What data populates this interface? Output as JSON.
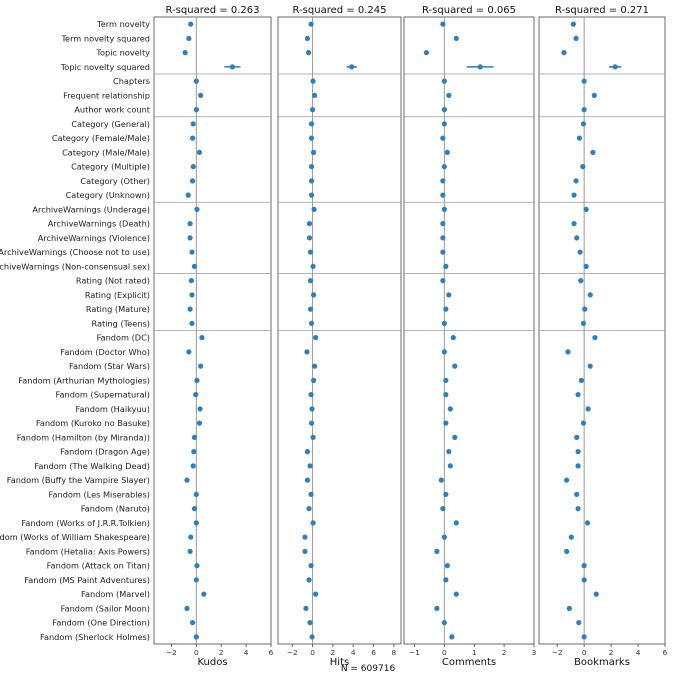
{
  "chart_data": {
    "type": "scatter",
    "note_label": "N = 609716",
    "marker_color": "#2f7fbf",
    "row_labels": [
      "Term novelty",
      "Term novelty squared",
      "Topic novelty",
      "Topic novelty squared",
      "Chapters",
      "Frequent relationship",
      "Author work count",
      "Category (General)",
      "Category (Female/Male)",
      "Category (Male/Male)",
      "Category (Multiple)",
      "Category (Other)",
      "Category (Unknown)",
      "ArchiveWarnings (Underage)",
      "ArchiveWarnings (Death)",
      "ArchiveWarnings (Violence)",
      "ArchiveWarnings (Choose not to use)",
      "ArchiveWarnings (Non-consensual sex)",
      "Rating (Not rated)",
      "Rating (Explicit)",
      "Rating (Mature)",
      "Rating (Teens)",
      "Fandom (DC)",
      "Fandom (Doctor Who)",
      "Fandom (Star Wars)",
      "Fandom (Arthurian Mythologies)",
      "Fandom (Supernatural)",
      "Fandom (Haikyuu)",
      "Fandom (Kuroko no Basuke)",
      "Fandom (Hamilton (by Miranda))",
      "Fandom (Dragon Age)",
      "Fandom (The Walking Dead)",
      "Fandom (Buffy the Vampire Slayer)",
      "Fandom (Les Miserables)",
      "Fandom (Naruto)",
      "Fandom (Works of J.R.R.Tolkien)",
      "Fandom (Works of William Shakespeare)",
      "Fandom (Hetalia: Axis Powers)",
      "Fandom (Attack on Titan)",
      "Fandom (MS Paint Adventures)",
      "Fandom (Marvel)",
      "Fandom (Sailor Moon)",
      "Fandom (One Direction)",
      "Fandom (Sherlock Holmes)"
    ],
    "group_breaks_after": [
      3,
      6,
      12,
      17,
      21
    ],
    "panels": [
      {
        "title": "R-squared = 0.263",
        "xlabel": "Kudos",
        "xlim": [
          -3.4,
          6
        ],
        "xticks": [
          -2,
          0,
          2,
          4,
          6
        ],
        "values": [
          -0.45,
          -0.6,
          -0.9,
          2.9,
          0.0,
          0.35,
          0.0,
          -0.25,
          -0.3,
          0.25,
          -0.25,
          -0.3,
          -0.65,
          0.05,
          -0.5,
          -0.5,
          -0.35,
          -0.15,
          -0.4,
          -0.35,
          -0.5,
          -0.35,
          0.45,
          -0.6,
          0.35,
          0.05,
          -0.05,
          0.3,
          0.25,
          -0.15,
          -0.2,
          -0.25,
          -0.75,
          0.0,
          -0.15,
          0.0,
          -0.45,
          -0.5,
          0.05,
          0.0,
          0.6,
          -0.75,
          -0.3,
          0.0
        ],
        "errors": [
          0,
          0,
          0,
          0.65,
          0,
          0,
          0,
          0,
          0,
          0,
          0,
          0,
          0,
          0,
          0,
          0,
          0,
          0,
          0,
          0,
          0,
          0,
          0,
          0,
          0,
          0,
          0,
          0,
          0,
          0,
          0,
          0,
          0,
          0,
          0,
          0,
          0,
          0,
          0,
          0,
          0,
          0,
          0,
          0
        ]
      },
      {
        "title": "R-squared = 0.245",
        "xlabel": "Hits",
        "xlim": [
          -3.4,
          8.7
        ],
        "xticks": [
          -2,
          0,
          2,
          4,
          6,
          8
        ],
        "values": [
          -0.15,
          -0.5,
          -0.4,
          3.85,
          0.05,
          0.2,
          0.0,
          -0.1,
          -0.1,
          0.1,
          -0.1,
          -0.1,
          -0.1,
          0.15,
          -0.3,
          -0.3,
          -0.2,
          0.05,
          -0.2,
          0.1,
          -0.2,
          -0.1,
          0.3,
          -0.55,
          0.2,
          0.1,
          -0.15,
          -0.05,
          -0.1,
          0.05,
          -0.5,
          -0.25,
          -0.5,
          -0.15,
          -0.35,
          0.05,
          -0.75,
          -0.75,
          -0.15,
          -0.35,
          0.3,
          -0.65,
          -0.25,
          -0.05
        ],
        "errors": [
          0,
          0,
          0,
          0.5,
          0,
          0,
          0,
          0,
          0,
          0,
          0,
          0,
          0,
          0,
          0,
          0,
          0,
          0,
          0,
          0,
          0,
          0,
          0,
          0,
          0,
          0,
          0,
          0,
          0,
          0,
          0,
          0,
          0,
          0,
          0,
          0,
          0,
          0,
          0,
          0,
          0,
          0,
          0,
          0
        ]
      },
      {
        "title": "R-squared = 0.065",
        "xlabel": "Comments",
        "xlim": [
          -1.35,
          3
        ],
        "xticks": [
          -1,
          0,
          1,
          2,
          3
        ],
        "values": [
          -0.05,
          0.4,
          -0.6,
          1.2,
          0.0,
          0.15,
          0.0,
          0.0,
          -0.05,
          0.1,
          0.0,
          -0.05,
          -0.05,
          0.0,
          -0.05,
          -0.05,
          -0.05,
          0.05,
          -0.05,
          0.15,
          0.05,
          0.0,
          0.3,
          0.0,
          0.35,
          0.05,
          0.05,
          0.2,
          0.05,
          0.35,
          0.15,
          0.2,
          -0.1,
          0.05,
          -0.05,
          0.4,
          0.0,
          -0.25,
          0.1,
          0.05,
          0.4,
          -0.25,
          0.0,
          0.25
        ],
        "errors": [
          0,
          0,
          0,
          0.45,
          0,
          0,
          0,
          0,
          0,
          0,
          0,
          0,
          0,
          0,
          0,
          0,
          0,
          0,
          0,
          0,
          0,
          0,
          0,
          0,
          0,
          0,
          0,
          0,
          0,
          0,
          0,
          0,
          0,
          0,
          0,
          0,
          0,
          0,
          0,
          0,
          0,
          0,
          0,
          0
        ]
      },
      {
        "title": "R-squared = 0.271",
        "xlabel": "Bookmarks",
        "xlim": [
          -3.35,
          6
        ],
        "xticks": [
          -2,
          0,
          2,
          4,
          6
        ],
        "values": [
          -0.8,
          -0.6,
          -1.5,
          2.3,
          0.0,
          0.75,
          0.0,
          -0.05,
          -0.35,
          0.65,
          -0.1,
          -0.6,
          -0.75,
          0.15,
          -0.75,
          -0.55,
          -0.3,
          0.15,
          -0.25,
          0.45,
          0.05,
          -0.05,
          0.8,
          -1.2,
          0.45,
          -0.2,
          -0.45,
          0.3,
          -0.05,
          -0.55,
          -0.45,
          -0.45,
          -1.3,
          -0.55,
          -0.45,
          0.25,
          -0.95,
          -1.3,
          0.0,
          0.0,
          0.9,
          -1.1,
          -0.4,
          0.0
        ],
        "errors": [
          0,
          0,
          0,
          0.45,
          0,
          0,
          0,
          0,
          0,
          0,
          0,
          0,
          0,
          0,
          0,
          0,
          0,
          0,
          0,
          0,
          0,
          0,
          0,
          0,
          0,
          0,
          0,
          0,
          0,
          0,
          0,
          0,
          0,
          0,
          0,
          0,
          0,
          0,
          0,
          0,
          0,
          0,
          0,
          0
        ]
      }
    ]
  }
}
